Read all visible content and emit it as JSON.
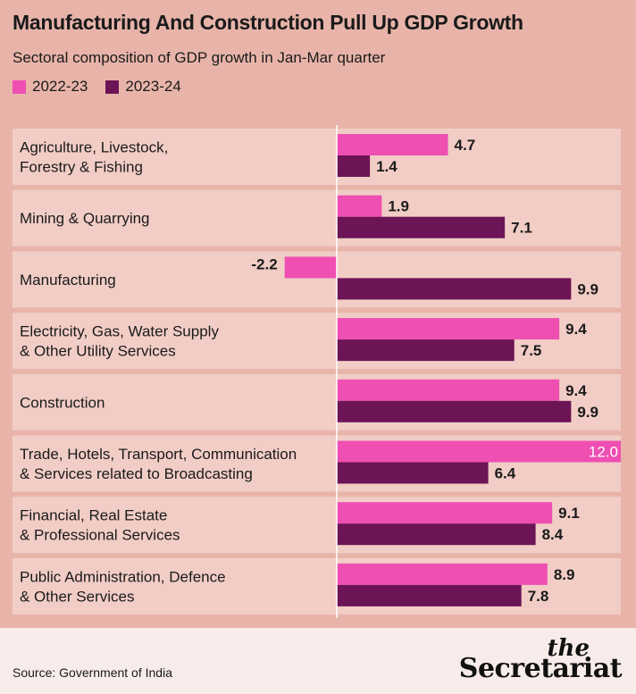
{
  "chart_data": {
    "type": "bar",
    "orientation": "horizontal",
    "title": "Manufacturing And Construction Pull Up GDP Growth",
    "subtitle": "Sectoral composition of GDP growth in Jan-Mar quarter",
    "categories": [
      [
        "Agriculture, Livestock,",
        "Forestry & Fishing"
      ],
      [
        "Mining & Quarrying"
      ],
      [
        "Manufacturing"
      ],
      [
        "Electricity, Gas, Water Supply",
        "& Other Utility Services"
      ],
      [
        "Construction"
      ],
      [
        "Trade, Hotels, Transport, Communication",
        "& Services related to Broadcasting"
      ],
      [
        "Financial,  Real Estate",
        "&  Professional Services"
      ],
      [
        "Public Administration, Defence",
        "& Other Services"
      ]
    ],
    "series": [
      {
        "name": "2022-23",
        "color": "#ef4fb2",
        "values": [
          4.7,
          1.9,
          -2.2,
          9.4,
          9.4,
          12.0,
          9.1,
          8.9
        ]
      },
      {
        "name": "2023-24",
        "color": "#6d1456",
        "values": [
          1.4,
          7.1,
          9.9,
          7.5,
          9.9,
          6.4,
          8.4,
          7.8
        ]
      }
    ],
    "value_labels": [
      [
        "4.7",
        "1.9",
        "-2.2",
        "9.4",
        "9.4",
        "12.0",
        "9.1",
        "8.9"
      ],
      [
        "1.4",
        "7.1",
        "9.9",
        "7.5",
        "9.9",
        "6.4",
        "8.4",
        "7.8"
      ]
    ],
    "xlim": [
      -2.2,
      12.0
    ],
    "legend_position": "top-left"
  },
  "footer": {
    "source": "Source: Government of India",
    "logo_top": "the",
    "logo_main": "Secretariat"
  }
}
